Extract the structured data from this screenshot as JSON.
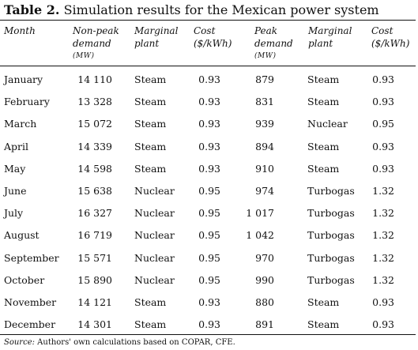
{
  "table": {
    "title_label": "Table 2.",
    "title_text": "Simulation results for the Mexican power system",
    "headers": {
      "month": "Month",
      "nonpeak_1": "Non-peak",
      "nonpeak_2": "demand",
      "nonpeak_unit": "(MW)",
      "marginal1_1": "Marginal",
      "marginal1_2": "plant",
      "cost1_1": "Cost",
      "cost1_2": "($/kWh)",
      "peak_1": "Peak",
      "peak_2": "demand",
      "peak_unit": "(MW)",
      "marginal2_1": "Marginal",
      "marginal2_2": "plant",
      "cost2_1": "Cost",
      "cost2_2": "($/kWh)"
    },
    "rows": [
      {
        "month": "January",
        "nonpeak": "14 110",
        "plant1": "Steam",
        "cost1": "0.93",
        "peak": "879",
        "plant2": "Steam",
        "cost2": "0.93"
      },
      {
        "month": "February",
        "nonpeak": "13 328",
        "plant1": "Steam",
        "cost1": "0.93",
        "peak": "831",
        "plant2": "Steam",
        "cost2": "0.93"
      },
      {
        "month": "March",
        "nonpeak": "15 072",
        "plant1": "Steam",
        "cost1": "0.93",
        "peak": "939",
        "plant2": "Nuclear",
        "cost2": "0.95"
      },
      {
        "month": "April",
        "nonpeak": "14 339",
        "plant1": "Steam",
        "cost1": "0.93",
        "peak": "894",
        "plant2": "Steam",
        "cost2": "0.93"
      },
      {
        "month": "May",
        "nonpeak": "14 598",
        "plant1": "Steam",
        "cost1": "0.93",
        "peak": "910",
        "plant2": "Steam",
        "cost2": "0.93"
      },
      {
        "month": "June",
        "nonpeak": "15 638",
        "plant1": "Nuclear",
        "cost1": "0.95",
        "peak": "974",
        "plant2": "Turbogas",
        "cost2": "1.32"
      },
      {
        "month": "July",
        "nonpeak": "16 327",
        "plant1": "Nuclear",
        "cost1": "0.95",
        "peak": "1 017",
        "plant2": "Turbogas",
        "cost2": "1.32"
      },
      {
        "month": "August",
        "nonpeak": "16 719",
        "plant1": "Nuclear",
        "cost1": "0.95",
        "peak": "1 042",
        "plant2": "Turbogas",
        "cost2": "1.32"
      },
      {
        "month": "September",
        "nonpeak": "15 571",
        "plant1": "Nuclear",
        "cost1": "0.95",
        "peak": "970",
        "plant2": "Turbogas",
        "cost2": "1.32"
      },
      {
        "month": "October",
        "nonpeak": "15 890",
        "plant1": "Nuclear",
        "cost1": "0.95",
        "peak": "990",
        "plant2": "Turbogas",
        "cost2": "1.32"
      },
      {
        "month": "November",
        "nonpeak": "14 121",
        "plant1": "Steam",
        "cost1": "0.93",
        "peak": "880",
        "plant2": "Steam",
        "cost2": "0.93"
      },
      {
        "month": "December",
        "nonpeak": "14 301",
        "plant1": "Steam",
        "cost1": "0.93",
        "peak": "891",
        "plant2": "Steam",
        "cost2": "0.93"
      }
    ],
    "source_label": "Source:",
    "source_text": " Authors' own calculations based on COPAR, CFE."
  }
}
